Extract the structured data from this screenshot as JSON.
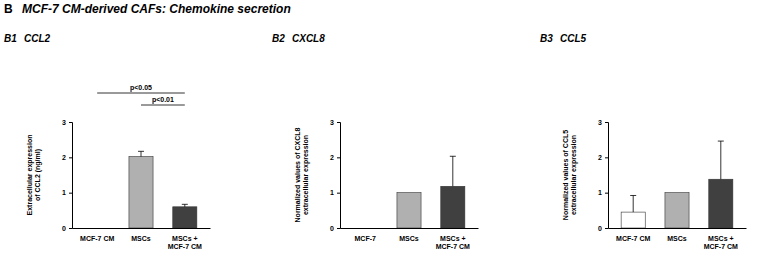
{
  "header": {
    "label": "B",
    "title": "MCF-7 CM-derived CAFs: Chemokine secretion"
  },
  "chart_data": [
    {
      "type": "bar",
      "label": "B1",
      "title": "CCL2",
      "y_label": "Extracellular expression of CCL2 (ng/ml)",
      "categories": [
        "MCF-7 CM",
        "MSCs",
        "MSCs + MCF-7 CM"
      ],
      "values": [
        0,
        2.02,
        0.6
      ],
      "error": [
        null,
        0.15,
        0.07
      ],
      "colors": [
        "#ffffff",
        "#b0b0b0",
        "#404040"
      ],
      "ylim": [
        0,
        3
      ],
      "yticks": [
        0,
        1,
        2,
        3
      ],
      "annotations": [
        {
          "from": "MCF-7 CM",
          "to": "MSCs + MCF-7 CM",
          "text": "p<0.05"
        },
        {
          "from": "MSCs",
          "to": "MSCs + MCF-7 CM",
          "text": "p<0.01"
        }
      ]
    },
    {
      "type": "bar",
      "label": "B2",
      "title": "CXCL8",
      "y_label": "Normalized values of CXCL8 extracellular expression",
      "categories": [
        "MCF-7",
        "MSCs",
        "MSCs + MCF-7 CM"
      ],
      "values": [
        0,
        1.0,
        1.18
      ],
      "error": [
        null,
        null,
        0.85
      ],
      "colors": [
        "#ffffff",
        "#b0b0b0",
        "#404040"
      ],
      "ylim": [
        0,
        3
      ],
      "yticks": [
        0,
        1,
        2,
        3
      ]
    },
    {
      "type": "bar",
      "label": "B3",
      "title": "CCL5",
      "y_label": "Normalized values of CCL5 extracellular expression",
      "categories": [
        "MCF-7 CM",
        "MSCs",
        "MSCs + MCF-7 CM"
      ],
      "values": [
        0.45,
        1.0,
        1.38
      ],
      "error": [
        0.47,
        null,
        1.08
      ],
      "colors": [
        "#ffffff",
        "#b0b0b0",
        "#404040"
      ],
      "ylim": [
        0,
        3
      ],
      "yticks": [
        0,
        1,
        2,
        3
      ]
    }
  ]
}
